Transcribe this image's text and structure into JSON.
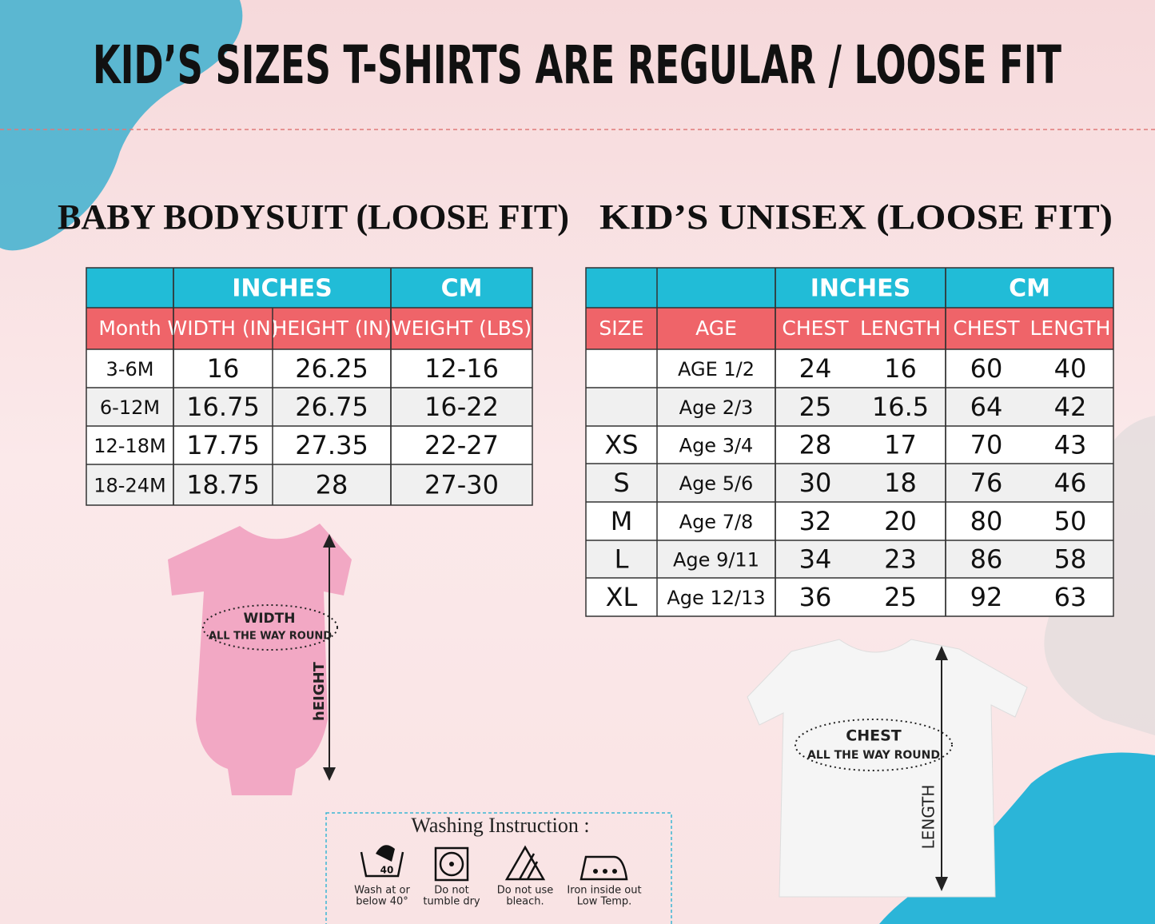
{
  "title": "KID’S SIZES T-SHIRTS ARE REGULAR / LOOSE FIT",
  "baby": {
    "heading": "BABY BODYSUIT (LOOSE FIT)",
    "groups": [
      "INCHES",
      "CM"
    ],
    "columns": [
      "Month",
      "WIDTH (IN)",
      "HEIGHT (IN)",
      "WEIGHT (LBS)"
    ],
    "rows": [
      [
        "3-6M",
        16,
        26.25,
        "12-16"
      ],
      [
        "6-12M",
        16.75,
        26.75,
        "16-22"
      ],
      [
        "12-18M",
        17.75,
        27.35,
        "22-27"
      ],
      [
        "18-24M",
        18.75,
        28,
        "27-30"
      ]
    ]
  },
  "kids": {
    "heading": "KID’S UNISEX (LOOSE FIT)",
    "groups": [
      "INCHES",
      "CM"
    ],
    "columns": [
      "SIZE",
      "AGE",
      "CHEST",
      "LENGTH",
      "CHEST",
      "LENGTH"
    ],
    "rows": [
      [
        null,
        "AGE 1/2",
        24,
        16,
        60,
        40
      ],
      [
        null,
        "Age 2/3",
        25,
        16.5,
        64,
        42
      ],
      [
        "XS",
        "Age 3/4",
        28,
        17,
        70,
        43
      ],
      [
        "S",
        "Age 5/6",
        30,
        18,
        76,
        46
      ],
      [
        "M",
        "Age 7/8",
        32,
        20,
        80,
        50
      ],
      [
        "L",
        "Age 9/11",
        34,
        23,
        86,
        58
      ],
      [
        "XL",
        "Age 12/13",
        36,
        25,
        92,
        63
      ]
    ]
  },
  "bodysuit": {
    "label": "WIDTH",
    "sublabel": "ALL THE WAY ROUND",
    "height_label": "hEIGHT"
  },
  "tshirt": {
    "label": "CHEST",
    "sublabel": "ALL THE WAY ROUND",
    "length_label": "LENGTH"
  },
  "washing": {
    "title": "Washing Instruction :",
    "icon_label": "40",
    "items": [
      [
        "Wash at or",
        "below 40°"
      ],
      [
        "Do  not",
        "tumble dry"
      ],
      [
        "Do not use",
        "bleach."
      ],
      [
        "Iron inside out",
        "Low Temp."
      ]
    ]
  }
}
